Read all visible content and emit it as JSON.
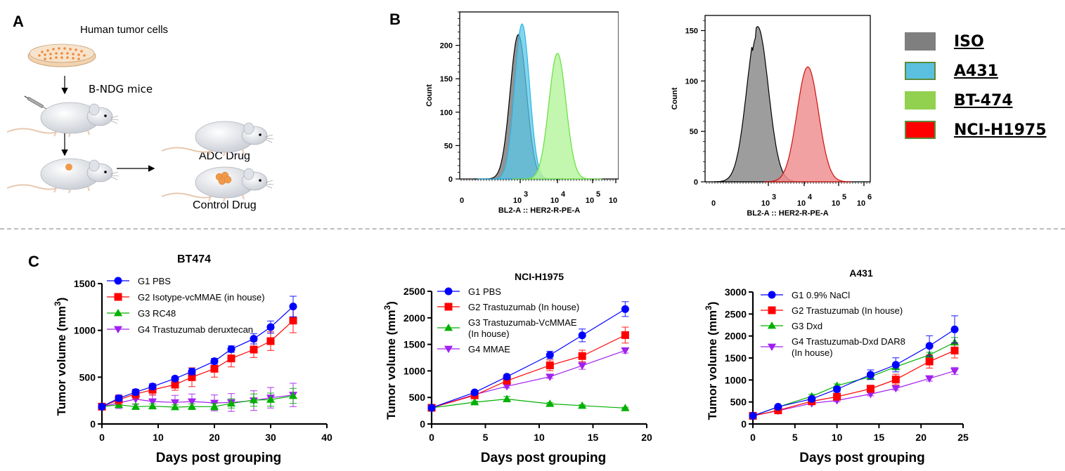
{
  "panels": {
    "a": {
      "letter": "A",
      "labels": {
        "cells": "Human tumor cells",
        "mice": "B-NDG mice",
        "adc": "ADC Drug",
        "control": "Control Drug"
      }
    },
    "b": {
      "letter": "B"
    },
    "c": {
      "letter": "C"
    }
  },
  "legend_b": {
    "items": [
      {
        "label": "ISO",
        "color": "#7f7f7f",
        "border": "#7f7f7f"
      },
      {
        "label": "A431",
        "color": "#5bc0e0",
        "border": "#5b8a3a"
      },
      {
        "label": "BT-474",
        "color": "#92d050",
        "border": "#92d050"
      },
      {
        "label": "NCI-H1975",
        "color": "#ff0000",
        "border": "#5b8a3a"
      }
    ]
  },
  "chart_data": [
    {
      "type": "area",
      "id": "flow1",
      "xlabel": "BL2-A :: HER2-R-PE-A",
      "ylabel": "Count",
      "ylim": [
        0,
        250
      ],
      "yticks": [
        0,
        50,
        100,
        150,
        200
      ],
      "xtick_labels": [
        {
          "base": "0",
          "exp": ""
        },
        {
          "base": "10",
          "exp": "3"
        },
        {
          "base": "10",
          "exp": "4"
        },
        {
          "base": "10",
          "exp": "5"
        },
        {
          "base": "10",
          "exp": "6"
        }
      ],
      "series": [
        {
          "name": "ISO",
          "fill": "#808080",
          "stroke": "#000000",
          "peak_log": 2.95,
          "peak_count": 216,
          "width": 0.22
        },
        {
          "name": "A431",
          "fill": "#5bc8e8",
          "stroke": "#2ab5e6",
          "peak_log": 3.05,
          "peak_count": 232,
          "width": 0.2
        },
        {
          "name": "BT-474",
          "fill": "#b8f5a0",
          "stroke": "#66e040",
          "peak_log": 4.0,
          "peak_count": 188,
          "width": 0.23
        }
      ]
    },
    {
      "type": "area",
      "id": "flow2",
      "xlabel": "BL2-A :: HER2-R-PE-A",
      "ylabel": "Count",
      "ylim": [
        0,
        165
      ],
      "yticks": [
        0,
        50,
        100,
        150
      ],
      "xtick_labels": [
        {
          "base": "0",
          "exp": ""
        },
        {
          "base": "10",
          "exp": "3"
        },
        {
          "base": "10",
          "exp": "4"
        },
        {
          "base": "10",
          "exp": "5"
        },
        {
          "base": "10",
          "exp": "6"
        }
      ],
      "series": [
        {
          "name": "ISO",
          "fill": "#8c8c8c",
          "stroke": "#000000",
          "peak_log": 2.7,
          "peak_count": 154,
          "width": 0.3
        },
        {
          "name": "NCI-H1975",
          "fill": "#ee9090",
          "stroke": "#d01010",
          "peak_log": 4.1,
          "peak_count": 114,
          "width": 0.3
        }
      ]
    },
    {
      "type": "line",
      "id": "bt474",
      "title": "BT474",
      "xlabel": "Days post grouping",
      "ylabel": "Tumor volume (mm",
      "ylabel_sup": "3",
      "ylabel_close": ")",
      "xlim": [
        0,
        40
      ],
      "ylim": [
        0,
        1500
      ],
      "xticks": [
        0,
        10,
        20,
        30,
        40
      ],
      "yticks": [
        0,
        500,
        1000,
        1500
      ],
      "x": [
        0,
        3,
        6,
        9,
        13,
        16,
        20,
        23,
        27,
        30,
        34
      ],
      "series": [
        {
          "name": "G1 PBS",
          "color": "#0000ff",
          "marker": "circle",
          "values": [
            185,
            275,
            340,
            400,
            485,
            560,
            670,
            800,
            910,
            1035,
            1255
          ],
          "errors": [
            20,
            30,
            30,
            30,
            20,
            35,
            30,
            35,
            55,
            65,
            110
          ]
        },
        {
          "name": "G2 Isotype-vcMMAE (in house)",
          "color": "#ff0000",
          "marker": "square",
          "values": [
            185,
            260,
            320,
            365,
            420,
            500,
            590,
            700,
            795,
            885,
            1105
          ],
          "errors": [
            20,
            50,
            50,
            55,
            60,
            100,
            90,
            90,
            85,
            100,
            130
          ]
        },
        {
          "name": "G3 RC48",
          "color": "#00b000",
          "marker": "triangle-up",
          "values": [
            185,
            205,
            185,
            190,
            180,
            185,
            185,
            220,
            255,
            260,
            300
          ],
          "errors": [
            20,
            30,
            30,
            25,
            25,
            30,
            35,
            50,
            65,
            70,
            80
          ]
        },
        {
          "name": "G4 Trastuzumab deruxtecan",
          "color": "#a020f0",
          "marker": "triangle-down",
          "values": [
            185,
            225,
            265,
            240,
            230,
            240,
            225,
            230,
            250,
            280,
            310
          ],
          "errors": [
            20,
            60,
            55,
            70,
            75,
            80,
            85,
            95,
            105,
            110,
            125
          ]
        }
      ]
    },
    {
      "type": "line",
      "id": "h1975",
      "title": "NCI-H1975",
      "xlabel": "Days post grouping",
      "ylabel": "Tumor volume (mm",
      "ylabel_sup": "3",
      "ylabel_close": ")",
      "xlim": [
        0,
        20
      ],
      "ylim": [
        0,
        2500
      ],
      "xticks": [
        0,
        5,
        10,
        15,
        20
      ],
      "yticks": [
        0,
        500,
        1000,
        1500,
        2000,
        2500
      ],
      "x": [
        0,
        4,
        7,
        11,
        14,
        18
      ],
      "series": [
        {
          "name": "G1 PBS",
          "label_lines": [
            "G1 PBS"
          ],
          "color": "#0000ff",
          "marker": "circle",
          "values": [
            305,
            595,
            890,
            1300,
            1670,
            2165
          ],
          "errors": [
            20,
            30,
            30,
            70,
            120,
            140
          ]
        },
        {
          "name": "G2 Trastuzumab (In house)",
          "label_lines": [
            "G2 Trastuzumab (In house)"
          ],
          "color": "#ff0000",
          "marker": "square",
          "values": [
            305,
            540,
            815,
            1105,
            1280,
            1675
          ],
          "errors": [
            20,
            30,
            40,
            100,
            110,
            150
          ]
        },
        {
          "name": "G3 Trastuzumab-VcMMAE (In house)",
          "label_lines": [
            "G3 Trastuzumab-VcMMAE",
            "(In house)"
          ],
          "color": "#00b000",
          "marker": "triangle-up",
          "values": [
            305,
            410,
            470,
            380,
            345,
            300
          ],
          "errors": [
            20,
            20,
            50,
            25,
            20,
            15
          ]
        },
        {
          "name": "G4 MMAE",
          "label_lines": [
            "G4 MMAE"
          ],
          "color": "#a020f0",
          "marker": "triangle-down",
          "values": [
            305,
            555,
            710,
            890,
            1100,
            1385
          ],
          "errors": [
            20,
            25,
            30,
            30,
            70,
            50
          ]
        }
      ]
    },
    {
      "type": "line",
      "id": "a431",
      "title": "A431",
      "xlabel": "Days post grouping",
      "ylabel": "Tumor volume (mm",
      "ylabel_sup": "3",
      "ylabel_close": ")",
      "xlim": [
        0,
        25
      ],
      "ylim": [
        0,
        3000
      ],
      "xticks": [
        0,
        5,
        10,
        15,
        20,
        25
      ],
      "yticks": [
        0,
        500,
        1000,
        1500,
        2000,
        2500,
        3000
      ],
      "x": [
        0,
        3,
        7,
        10,
        14,
        17,
        21,
        24
      ],
      "series": [
        {
          "name": "G1 0.9% NaCl",
          "label_lines": [
            "G1 0.9% NaCl"
          ],
          "color": "#0000ff",
          "marker": "circle",
          "values": [
            185,
            390,
            570,
            790,
            1120,
            1345,
            1775,
            2150
          ],
          "errors": [
            20,
            30,
            50,
            60,
            110,
            160,
            230,
            310
          ]
        },
        {
          "name": "G2 Trastuzumab (In house)",
          "label_lines": [
            "G2 Trastuzumab (In house)"
          ],
          "color": "#ff0000",
          "marker": "square",
          "values": [
            185,
            310,
            515,
            620,
            800,
            1010,
            1420,
            1670
          ],
          "errors": [
            20,
            30,
            40,
            60,
            80,
            120,
            150,
            170
          ]
        },
        {
          "name": "G3 Dxd",
          "label_lines": [
            "G3 Dxd"
          ],
          "color": "#00b000",
          "marker": "triangle-up",
          "values": [
            185,
            385,
            630,
            870,
            1075,
            1300,
            1570,
            1855
          ],
          "errors": [
            20,
            30,
            40,
            40,
            60,
            70,
            60,
            110
          ]
        },
        {
          "name": "G4 Trastuzumab-Dxd DAR8 (In house)",
          "label_lines": [
            "G4 Trastuzumab-Dxd DAR8",
            " (In house)"
          ],
          "color": "#a020f0",
          "marker": "triangle-down",
          "values": [
            185,
            300,
            470,
            535,
            680,
            810,
            1035,
            1205
          ],
          "errors": [
            20,
            25,
            30,
            30,
            40,
            40,
            60,
            80
          ]
        }
      ]
    }
  ]
}
